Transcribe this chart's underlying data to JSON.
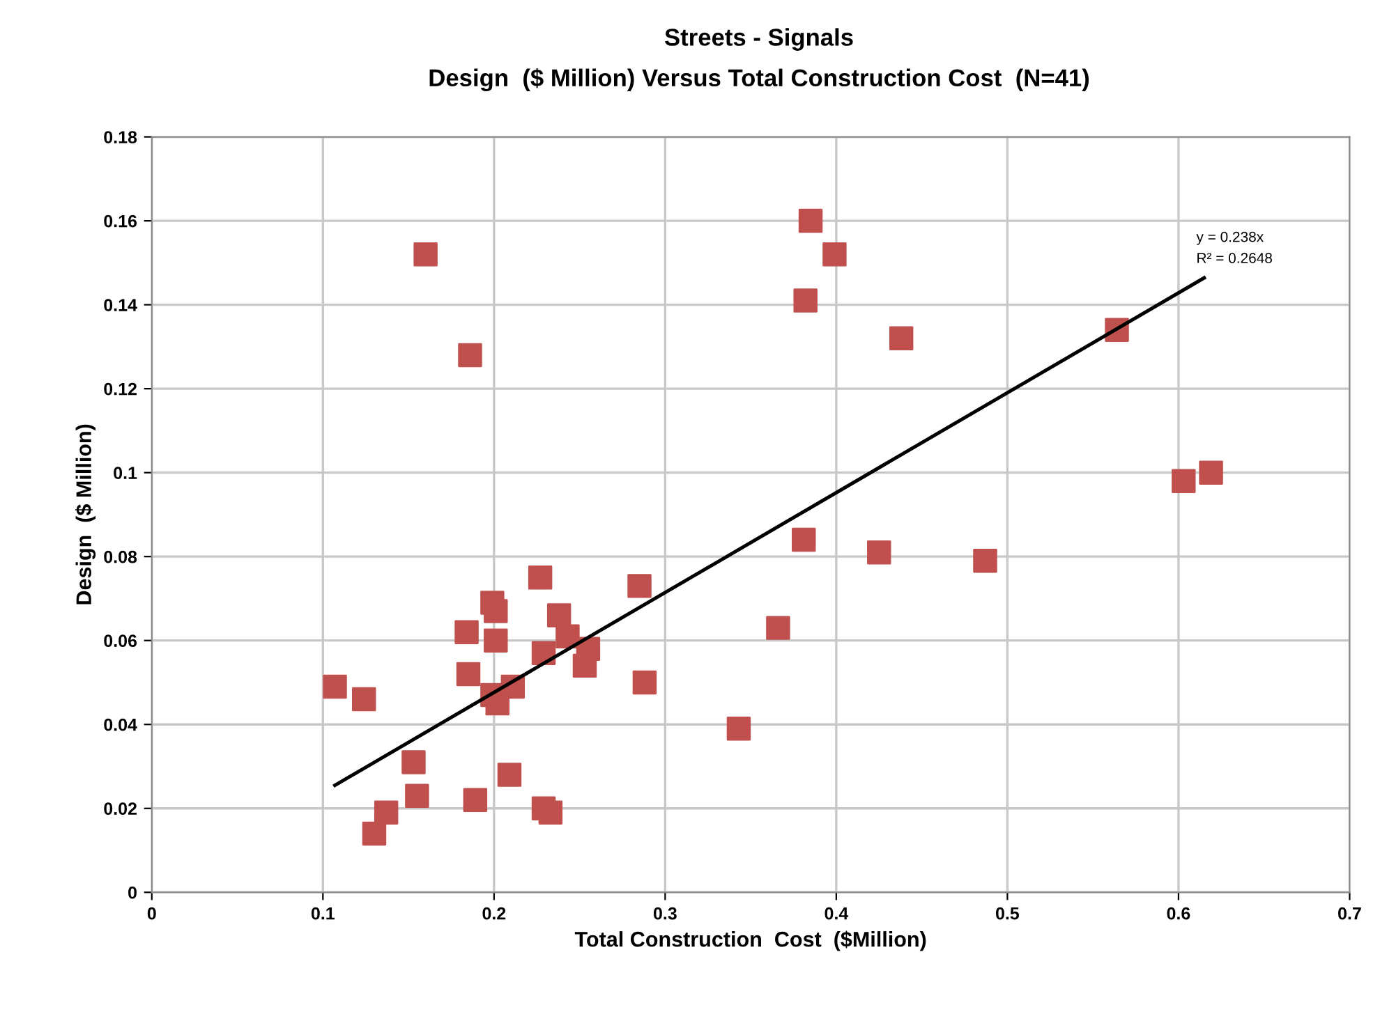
{
  "chart_data": {
    "type": "scatter",
    "title": "Streets - Signals",
    "subtitle": "Design  ($ Million) Versus Total Construction Cost  (N=41)",
    "xlabel": "Total Construction  Cost  ($Million)",
    "ylabel": "Design  ($ Million)",
    "xlim": [
      0,
      0.7
    ],
    "xticks": [
      0,
      0.1,
      0.2,
      0.3,
      0.4,
      0.5,
      0.6,
      0.7
    ],
    "ylim": [
      0,
      0.18
    ],
    "yticks": [
      0,
      0.02,
      0.04,
      0.06,
      0.08,
      0.1,
      0.12,
      0.14,
      0.16,
      0.18
    ],
    "grid": true,
    "legend": false,
    "annotations": [
      "y = 0.238x",
      "R² = 0.2648"
    ],
    "series": [
      {
        "color": "#c0504d",
        "marker": "square",
        "x": [
          0.107,
          0.124,
          0.184,
          0.185,
          0.199,
          0.201,
          0.201,
          0.199,
          0.202,
          0.211,
          0.227,
          0.238,
          0.243,
          0.229,
          0.255,
          0.253,
          0.285,
          0.288,
          0.343,
          0.153,
          0.155,
          0.137,
          0.13,
          0.189,
          0.209,
          0.229,
          0.233,
          0.16,
          0.186,
          0.385,
          0.399,
          0.382,
          0.438,
          0.564,
          0.603,
          0.619,
          0.381,
          0.425,
          0.487,
          0.366
        ],
        "values": [
          0.049,
          0.046,
          0.062,
          0.052,
          0.069,
          0.067,
          0.06,
          0.047,
          0.045,
          0.049,
          0.075,
          0.066,
          0.061,
          0.057,
          0.058,
          0.054,
          0.073,
          0.05,
          0.039,
          0.031,
          0.023,
          0.019,
          0.014,
          0.022,
          0.028,
          0.02,
          0.019,
          0.152,
          0.128,
          0.16,
          0.152,
          0.141,
          0.132,
          0.134,
          0.098,
          0.1,
          0.084,
          0.081,
          0.079,
          0.063
        ]
      },
      {
        "type": "line",
        "color": "#000000",
        "marker": "none",
        "line_style": "solid",
        "x": [
          0.107,
          0.615
        ],
        "values": [
          0.0255,
          0.1464
        ]
      }
    ]
  }
}
